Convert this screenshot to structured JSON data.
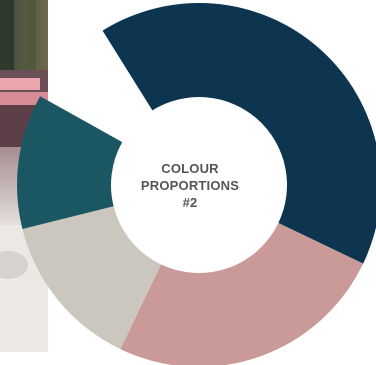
{
  "center_label": {
    "line1": "COLOUR",
    "line2": "PROPORTIONS",
    "line3": "#2"
  },
  "chart_data": {
    "type": "pie",
    "categories": [
      "",
      "",
      "",
      ""
    ],
    "values": [
      41,
      25,
      14,
      12
    ],
    "colors": [
      "#0d3550",
      "#c99a98",
      "#cbc7bf",
      "#1b5663"
    ],
    "donut": true,
    "title": ""
  },
  "colors": {
    "background": "#ffffff",
    "label": "#555555"
  }
}
